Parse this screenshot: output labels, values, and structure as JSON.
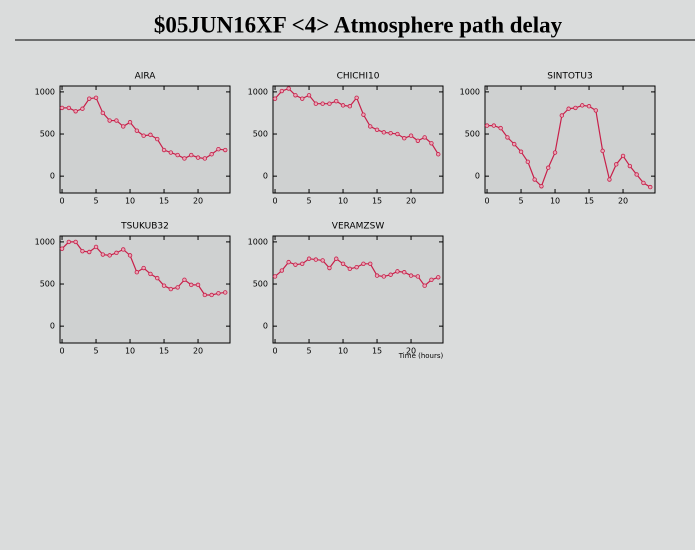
{
  "title": "$05JUN16XF <4>  Atmosphere path delay",
  "chart_data": [
    {
      "type": "line",
      "title": "AIRA",
      "color": "#c8204a",
      "x": [
        0,
        1,
        2,
        3,
        4,
        5,
        6,
        7,
        8,
        9,
        10,
        11,
        12,
        13,
        14,
        15,
        16,
        17,
        18,
        19,
        20,
        21,
        22,
        23,
        24
      ],
      "values": [
        810,
        810,
        770,
        800,
        920,
        930,
        750,
        660,
        660,
        590,
        640,
        540,
        480,
        490,
        440,
        310,
        280,
        250,
        210,
        250,
        220,
        210,
        260,
        320,
        310
      ],
      "xlim": [
        -0.3,
        24.7
      ],
      "ylim": [
        -200,
        1070
      ],
      "xticks": [
        0,
        5,
        10,
        15,
        20
      ],
      "yticks": [
        0,
        500,
        1000
      ]
    },
    {
      "type": "line",
      "title": "CHICHI10",
      "color": "#c8204a",
      "x": [
        0,
        1,
        2,
        3,
        4,
        5,
        6,
        7,
        8,
        9,
        10,
        11,
        12,
        13,
        14,
        15,
        16,
        17,
        18,
        19,
        20,
        21,
        22,
        23,
        24
      ],
      "values": [
        920,
        1010,
        1040,
        960,
        920,
        960,
        860,
        860,
        860,
        890,
        840,
        830,
        930,
        730,
        590,
        550,
        520,
        510,
        500,
        450,
        480,
        420,
        460,
        390,
        260
      ],
      "xlim": [
        -0.3,
        24.7
      ],
      "ylim": [
        -200,
        1070
      ],
      "xticks": [
        0,
        5,
        10,
        15,
        20
      ],
      "yticks": [
        0,
        500,
        1000
      ]
    },
    {
      "type": "line",
      "title": "SINTOTU3",
      "color": "#c8204a",
      "x": [
        0,
        1,
        2,
        3,
        4,
        5,
        6,
        7,
        8,
        9,
        10,
        11,
        12,
        13,
        14,
        15,
        16,
        17,
        18,
        19,
        20,
        21,
        22,
        23,
        24
      ],
      "values": [
        600,
        600,
        570,
        460,
        380,
        290,
        170,
        -40,
        -120,
        100,
        280,
        720,
        800,
        810,
        840,
        830,
        780,
        300,
        -40,
        140,
        240,
        120,
        20,
        -80,
        -130
      ],
      "xlim": [
        -0.3,
        24.7
      ],
      "ylim": [
        -200,
        1070
      ],
      "xticks": [
        0,
        5,
        10,
        15,
        20
      ],
      "yticks": [
        0,
        500,
        1000
      ]
    },
    {
      "type": "line",
      "title": "TSUKUB32",
      "color": "#c8204a",
      "x": [
        0,
        1,
        2,
        3,
        4,
        5,
        6,
        7,
        8,
        9,
        10,
        11,
        12,
        13,
        14,
        15,
        16,
        17,
        18,
        19,
        20,
        21,
        22,
        23,
        24
      ],
      "values": [
        920,
        1000,
        1000,
        890,
        880,
        940,
        850,
        840,
        870,
        910,
        840,
        640,
        690,
        620,
        570,
        480,
        440,
        460,
        550,
        490,
        490,
        370,
        370,
        390,
        400
      ],
      "xlim": [
        -0.3,
        24.7
      ],
      "ylim": [
        -200,
        1070
      ],
      "xticks": [
        0,
        5,
        10,
        15,
        20
      ],
      "yticks": [
        0,
        500,
        1000
      ]
    },
    {
      "type": "line",
      "title": "VERAMZSW",
      "color": "#c8204a",
      "xlabel": "Time (hours)",
      "x": [
        0,
        1,
        2,
        3,
        4,
        5,
        6,
        7,
        8,
        9,
        10,
        11,
        12,
        13,
        14,
        15,
        16,
        17,
        18,
        19,
        20,
        21,
        22,
        23,
        24
      ],
      "values": [
        590,
        660,
        760,
        730,
        740,
        800,
        790,
        780,
        690,
        800,
        740,
        680,
        700,
        740,
        740,
        600,
        590,
        610,
        650,
        640,
        600,
        590,
        480,
        550,
        580
      ],
      "xlim": [
        -0.3,
        24.7
      ],
      "ylim": [
        -200,
        1070
      ],
      "xticks": [
        0,
        5,
        10,
        15,
        20
      ],
      "yticks": [
        0,
        500,
        1000
      ]
    }
  ]
}
